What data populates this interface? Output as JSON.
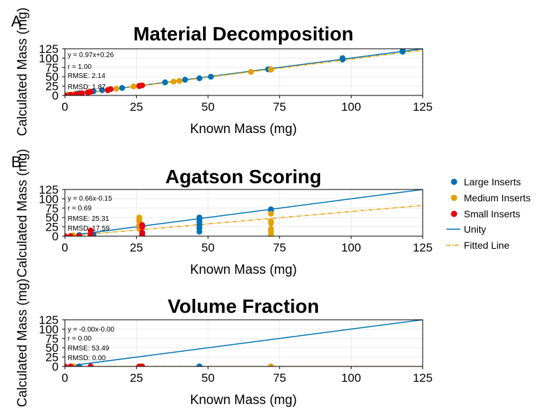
{
  "chart_data": [
    {
      "type": "scatter",
      "panel_label": "A",
      "title": "Material Decomposition",
      "xlabel": "Known Mass (mg)",
      "ylabel": "Calculated Mass (mg)",
      "xlim": [
        0,
        125
      ],
      "ylim": [
        0,
        125
      ],
      "xticks": [
        0,
        25,
        50,
        75,
        100,
        125
      ],
      "yticks": [
        0,
        25,
        50,
        75,
        100,
        125
      ],
      "grid": true,
      "annotations": [
        "y = 0.97x+0.26",
        "r = 1.00",
        "RMSE: 2.14",
        "RMSD: 1.87"
      ],
      "series": [
        {
          "name": "Large Inserts",
          "color": "#0072b2",
          "x": [
            1,
            5,
            10,
            13,
            20,
            26,
            35,
            42,
            47,
            51,
            71,
            97,
            97,
            118,
            118
          ],
          "y": [
            2,
            6,
            11,
            14,
            20,
            26,
            35,
            42,
            46,
            50,
            70,
            100,
            96,
            120,
            117
          ]
        },
        {
          "name": "Medium Inserts",
          "color": "#e69f00",
          "x": [
            1,
            3,
            8,
            15,
            18,
            24,
            26,
            38,
            40,
            65,
            72,
            72
          ],
          "y": [
            1,
            3,
            8,
            15,
            18,
            24,
            26,
            37,
            39,
            63,
            69,
            70
          ]
        },
        {
          "name": "Small Inserts",
          "color": "#e8000b",
          "x": [
            0,
            2,
            4,
            6,
            8,
            9,
            15,
            16,
            26,
            27
          ],
          "y": [
            0,
            2,
            4,
            6,
            8,
            10,
            14,
            17,
            25,
            27
          ]
        }
      ],
      "lines": [
        {
          "name": "Unity",
          "slope": 1,
          "intercept": 0
        },
        {
          "name": "Fitted Line",
          "slope": 0.97,
          "intercept": 0.26
        }
      ]
    },
    {
      "type": "scatter",
      "panel_label": "B",
      "title": "Agatson Scoring",
      "xlabel": "Known Mass (mg)",
      "ylabel": "Calculated Mass (mg)",
      "xlim": [
        0,
        125
      ],
      "ylim": [
        0,
        125
      ],
      "xticks": [
        0,
        25,
        50,
        75,
        100,
        125
      ],
      "yticks": [
        0,
        25,
        50,
        75,
        100,
        125
      ],
      "grid": true,
      "annotations": [
        "y = 0.66x-0.15",
        "r = 0.69",
        "RMSE: 25.31",
        "RMSD: 17.59"
      ],
      "series": [
        {
          "name": "Large Inserts",
          "color": "#0072b2",
          "x": [
            5,
            10,
            47,
            47,
            47,
            47,
            47,
            47,
            72,
            72
          ],
          "y": [
            3,
            5,
            50,
            45,
            38,
            30,
            22,
            12,
            72,
            68
          ]
        },
        {
          "name": "Medium Inserts",
          "color": "#e69f00",
          "x": [
            2,
            3,
            26,
            26,
            26,
            26,
            26,
            72,
            72,
            72,
            72,
            72,
            72,
            72
          ],
          "y": [
            1,
            2,
            50,
            45,
            40,
            30,
            20,
            60,
            40,
            35,
            20,
            12,
            5,
            0
          ]
        },
        {
          "name": "Small Inserts",
          "color": "#e8000b",
          "x": [
            0,
            2,
            5,
            9,
            9,
            9,
            27,
            27,
            27,
            27,
            27
          ],
          "y": [
            0,
            0,
            0,
            0,
            5,
            15,
            30,
            25,
            10,
            5,
            0
          ]
        }
      ],
      "lines": [
        {
          "name": "Unity",
          "slope": 1,
          "intercept": 0
        },
        {
          "name": "Fitted Line",
          "slope": 0.66,
          "intercept": -0.15
        }
      ]
    },
    {
      "type": "scatter",
      "panel_label": "",
      "title": "Volume Fraction",
      "xlabel": "Known Mass (mg)",
      "ylabel": "Calculated Mass (mg)",
      "xlim": [
        0,
        125
      ],
      "ylim": [
        0,
        125
      ],
      "xticks": [
        0,
        25,
        50,
        75,
        100,
        125
      ],
      "yticks": [
        0,
        25,
        50,
        75,
        100,
        125
      ],
      "grid": true,
      "annotations": [
        "y = -0.00x-0.00",
        "r = 0.00",
        "RMSE: 53.49",
        "RMSD: 0.00"
      ],
      "series": [
        {
          "name": "Large Inserts",
          "color": "#0072b2",
          "x": [
            5,
            47,
            47
          ],
          "y": [
            0,
            0,
            0
          ]
        },
        {
          "name": "Medium Inserts",
          "color": "#e69f00",
          "x": [
            3,
            26,
            72
          ],
          "y": [
            0,
            0,
            0
          ]
        },
        {
          "name": "Small Inserts",
          "color": "#e8000b",
          "x": [
            0,
            2,
            9,
            26,
            27
          ],
          "y": [
            0,
            0,
            0,
            0,
            0
          ]
        }
      ],
      "lines": [
        {
          "name": "Unity",
          "slope": 1,
          "intercept": 0
        },
        {
          "name": "Fitted Line",
          "slope": 0,
          "intercept": 0
        }
      ]
    }
  ],
  "legend": {
    "placement": "right",
    "items": [
      {
        "label": "Large Inserts",
        "kind": "marker",
        "color": "#0072b2"
      },
      {
        "label": "Medium Inserts",
        "kind": "marker",
        "color": "#e69f00"
      },
      {
        "label": "Small Inserts",
        "kind": "marker",
        "color": "#e8000b"
      },
      {
        "label": "Unity",
        "kind": "line",
        "color": "#0072b2"
      },
      {
        "label": "Fitted Line",
        "kind": "dashdot",
        "color": "#e69f00"
      }
    ]
  }
}
